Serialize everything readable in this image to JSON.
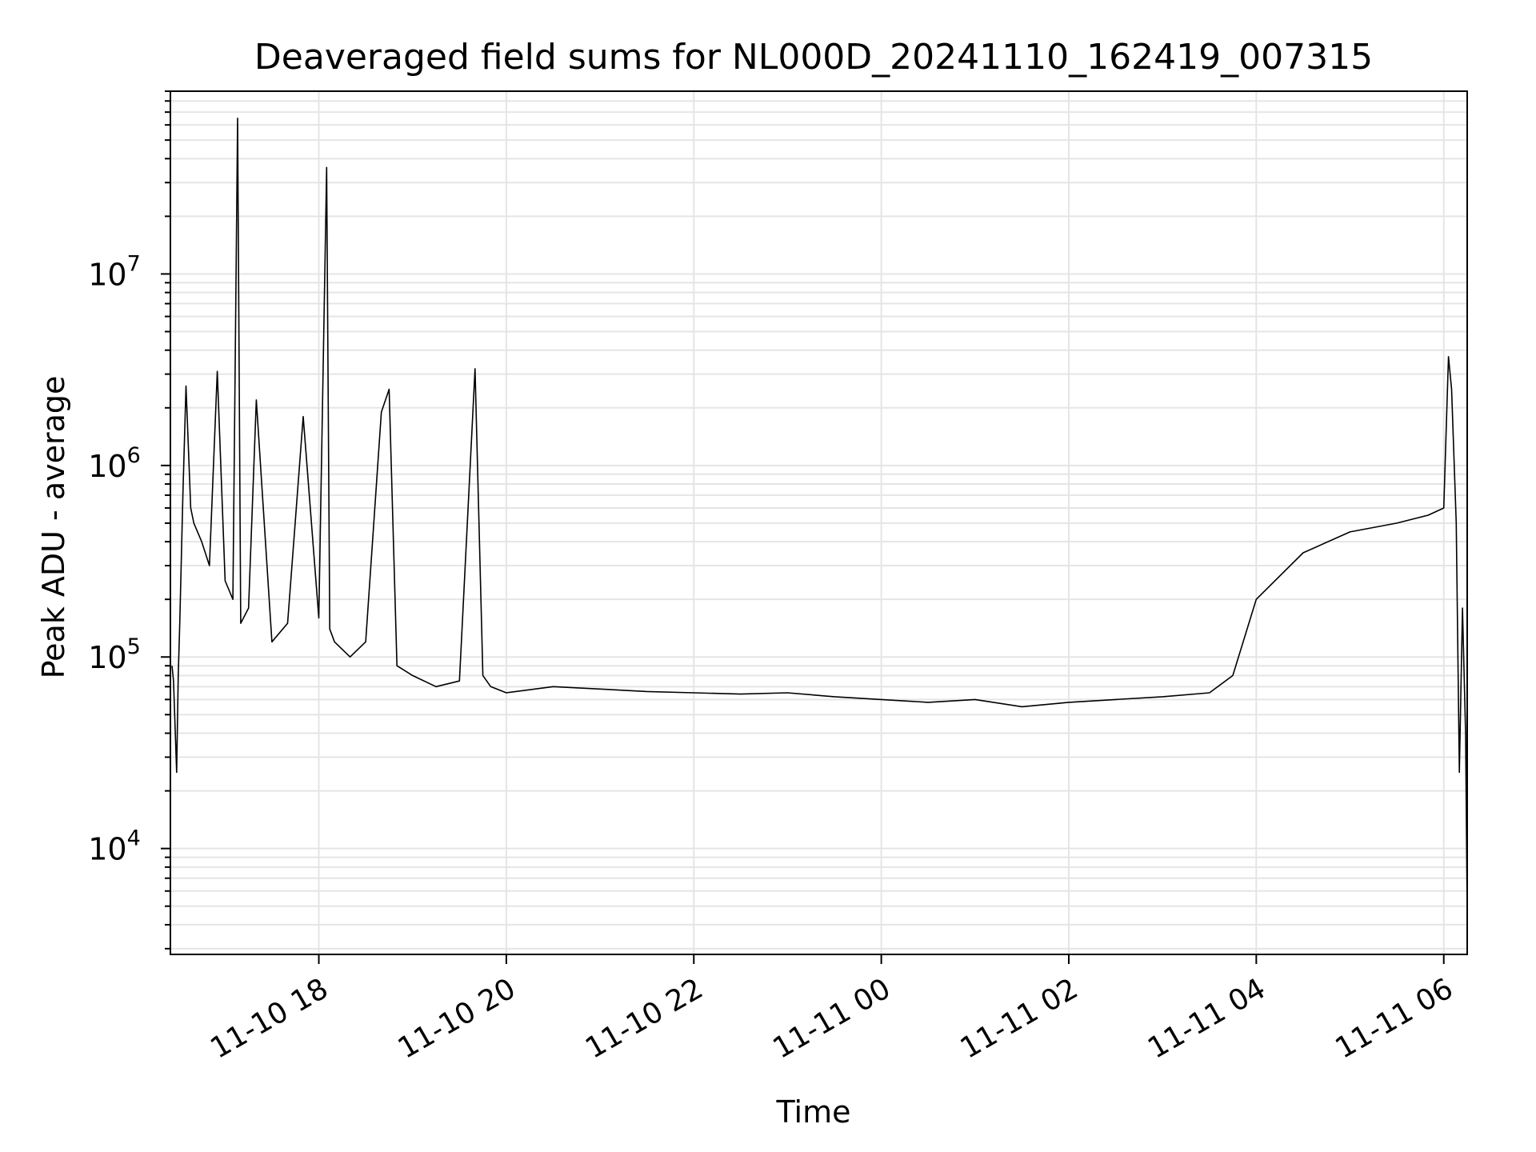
{
  "chart_data": {
    "type": "line",
    "title": "Deaveraged field sums for NL000D_20241110_162419_007315",
    "xlabel": "Time",
    "ylabel": "Peak ADU - average",
    "yscale": "log",
    "xlim": [
      "2024-11-10 16:25",
      "2024-11-11 06:15"
    ],
    "ylim": [
      2800,
      90000000
    ],
    "x_ticks": [
      {
        "t": "2024-11-10 18:00",
        "label": "11-10 18"
      },
      {
        "t": "2024-11-10 20:00",
        "label": "11-10 20"
      },
      {
        "t": "2024-11-10 22:00",
        "label": "11-10 22"
      },
      {
        "t": "2024-11-11 00:00",
        "label": "11-11 00"
      },
      {
        "t": "2024-11-11 02:00",
        "label": "11-11 02"
      },
      {
        "t": "2024-11-11 04:00",
        "label": "11-11 04"
      },
      {
        "t": "2024-11-11 06:00",
        "label": "11-11 06"
      }
    ],
    "y_ticks": [
      {
        "v": 10000,
        "base": "10",
        "exp": "4"
      },
      {
        "v": 100000,
        "base": "10",
        "exp": "5"
      },
      {
        "v": 1000000,
        "base": "10",
        "exp": "6"
      },
      {
        "v": 10000000,
        "base": "10",
        "exp": "7"
      }
    ],
    "grid": true,
    "line_color": "#000000",
    "grid_color": "#e5e5e5",
    "series": [
      {
        "x": [
          "2024-11-10 16:26",
          "2024-11-10 16:27",
          "2024-11-10 16:29",
          "2024-11-10 16:30",
          "2024-11-10 16:31",
          "2024-11-10 16:33",
          "2024-11-10 16:35",
          "2024-11-10 16:38",
          "2024-11-10 16:40",
          "2024-11-10 16:45",
          "2024-11-10 16:50",
          "2024-11-10 16:55",
          "2024-11-10 17:00",
          "2024-11-10 17:05",
          "2024-11-10 17:08",
          "2024-11-10 17:10",
          "2024-11-10 17:15",
          "2024-11-10 17:20",
          "2024-11-10 17:30",
          "2024-11-10 17:40",
          "2024-11-10 17:50",
          "2024-11-10 18:00",
          "2024-11-10 18:05",
          "2024-11-10 18:07",
          "2024-11-10 18:10",
          "2024-11-10 18:20",
          "2024-11-10 18:30",
          "2024-11-10 18:40",
          "2024-11-10 18:45",
          "2024-11-10 18:50",
          "2024-11-10 19:00",
          "2024-11-10 19:15",
          "2024-11-10 19:30",
          "2024-11-10 19:40",
          "2024-11-10 19:45",
          "2024-11-10 19:50",
          "2024-11-10 20:00",
          "2024-11-10 20:30",
          "2024-11-10 21:00",
          "2024-11-10 21:30",
          "2024-11-10 22:00",
          "2024-11-10 22:30",
          "2024-11-10 23:00",
          "2024-11-10 23:30",
          "2024-11-11 00:00",
          "2024-11-11 00:30",
          "2024-11-11 01:00",
          "2024-11-11 01:30",
          "2024-11-11 02:00",
          "2024-11-11 02:30",
          "2024-11-11 03:00",
          "2024-11-11 03:30",
          "2024-11-11 03:45",
          "2024-11-11 04:00",
          "2024-11-11 04:30",
          "2024-11-11 05:00",
          "2024-11-11 05:30",
          "2024-11-11 05:50",
          "2024-11-11 06:00",
          "2024-11-11 06:03",
          "2024-11-11 06:05",
          "2024-11-11 06:08",
          "2024-11-11 06:10",
          "2024-11-11 06:12",
          "2024-11-11 06:14",
          "2024-11-11 06:15"
        ],
        "y": [
          90000,
          75000,
          25000,
          80000,
          150000,
          700000,
          2600000,
          600000,
          500000,
          400000,
          300000,
          3100000,
          250000,
          200000,
          65000000,
          150000,
          180000,
          2200000,
          120000,
          150000,
          1800000,
          160000,
          36000000,
          140000,
          120000,
          100000,
          120000,
          1900000,
          2500000,
          90000,
          80000,
          70000,
          75000,
          3200000,
          80000,
          70000,
          65000,
          70000,
          68000,
          66000,
          65000,
          64000,
          65000,
          62000,
          60000,
          58000,
          60000,
          55000,
          58000,
          60000,
          62000,
          65000,
          80000,
          200000,
          350000,
          450000,
          500000,
          550000,
          600000,
          3700000,
          2500000,
          500000,
          25000,
          180000,
          40000,
          4500
        ]
      }
    ]
  }
}
